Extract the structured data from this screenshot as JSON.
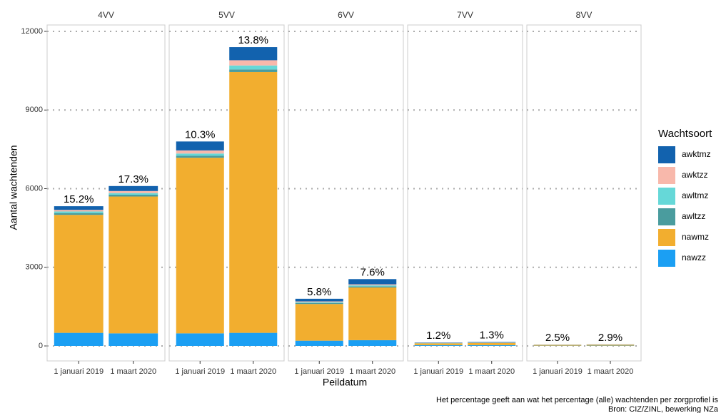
{
  "axes": {
    "y_label": "Aantal wachtenden",
    "x_label": "Peildatum",
    "ylim": [
      0,
      12000
    ],
    "yticks": [
      0,
      3000,
      6000,
      9000,
      12000
    ],
    "grid": true
  },
  "legend": {
    "title": "Wachtsoort",
    "entries": [
      {
        "name": "awktmz",
        "color": "#1262ae"
      },
      {
        "name": "awktzz",
        "color": "#f8b8ab"
      },
      {
        "name": "awltmz",
        "color": "#66d8d8"
      },
      {
        "name": "awltzz",
        "color": "#4a9c9e"
      },
      {
        "name": "nawmz",
        "color": "#f2ae2f"
      },
      {
        "name": "nawzz",
        "color": "#1b9ff3"
      }
    ]
  },
  "chart_data": [
    {
      "type": "bar",
      "stacked": true,
      "title": "4VV",
      "categories": [
        "1 januari 2019",
        "1 maart 2020"
      ],
      "series": [
        {
          "values": [
            140,
            190
          ]
        },
        {
          "values": [
            60,
            80
          ]
        },
        {
          "values": [
            60,
            60
          ]
        },
        {
          "values": [
            70,
            70
          ]
        },
        {
          "values": [
            4500,
            5220
          ]
        },
        {
          "values": [
            500,
            480
          ]
        }
      ],
      "annotations": [
        {
          "value": 15.2,
          "label": "15.2%"
        },
        {
          "value": 17.3,
          "label": "17.3%"
        }
      ]
    },
    {
      "type": "bar",
      "stacked": true,
      "title": "5VV",
      "categories": [
        "1 januari 2019",
        "1 maart 2020"
      ],
      "series": [
        {
          "values": [
            340,
            500
          ]
        },
        {
          "values": [
            120,
            200
          ]
        },
        {
          "values": [
            80,
            150
          ]
        },
        {
          "values": [
            80,
            100
          ]
        },
        {
          "values": [
            6700,
            9950
          ]
        },
        {
          "values": [
            480,
            500
          ]
        }
      ],
      "annotations": [
        {
          "value": 10.3,
          "label": "10.3%"
        },
        {
          "value": 13.8,
          "label": "13.8%"
        }
      ]
    },
    {
      "type": "bar",
      "stacked": true,
      "title": "6VV",
      "categories": [
        "1 januari 2019",
        "1 maart 2020"
      ],
      "series": [
        {
          "values": [
            100,
            200
          ]
        },
        {
          "values": [
            30,
            40
          ]
        },
        {
          "values": [
            30,
            40
          ]
        },
        {
          "values": [
            40,
            40
          ]
        },
        {
          "values": [
            1400,
            2010
          ]
        },
        {
          "values": [
            200,
            220
          ]
        }
      ],
      "annotations": [
        {
          "value": 5.8,
          "label": "5.8%"
        },
        {
          "value": 7.6,
          "label": "7.6%"
        }
      ]
    },
    {
      "type": "bar",
      "stacked": true,
      "title": "7VV",
      "categories": [
        "1 januari 2019",
        "1 maart 2020"
      ],
      "series": [
        {
          "values": [
            15,
            20
          ]
        },
        {
          "values": [
            5,
            5
          ]
        },
        {
          "values": [
            5,
            5
          ]
        },
        {
          "values": [
            5,
            5
          ]
        },
        {
          "values": [
            70,
            85
          ]
        },
        {
          "values": [
            30,
            30
          ]
        }
      ],
      "annotations": [
        {
          "value": 1.2,
          "label": "1.2%"
        },
        {
          "value": 1.3,
          "label": "1.3%"
        }
      ]
    },
    {
      "type": "bar",
      "stacked": true,
      "title": "8VV",
      "categories": [
        "1 januari 2019",
        "1 maart 2020"
      ],
      "series": [
        {
          "values": [
            4,
            5
          ]
        },
        {
          "values": [
            2,
            3
          ]
        },
        {
          "values": [
            2,
            2
          ]
        },
        {
          "values": [
            2,
            2
          ]
        },
        {
          "values": [
            30,
            36
          ]
        },
        {
          "values": [
            10,
            12
          ]
        }
      ],
      "annotations": [
        {
          "value": 2.5,
          "label": "2.5%"
        },
        {
          "value": 2.9,
          "label": "2.9%"
        }
      ]
    }
  ],
  "caption": [
    "Het percentage geeft aan wat het percentage (alle) wachtenden per zorgprofiel is",
    "Bron: CIZ/ZINL, bewerking NZa"
  ]
}
